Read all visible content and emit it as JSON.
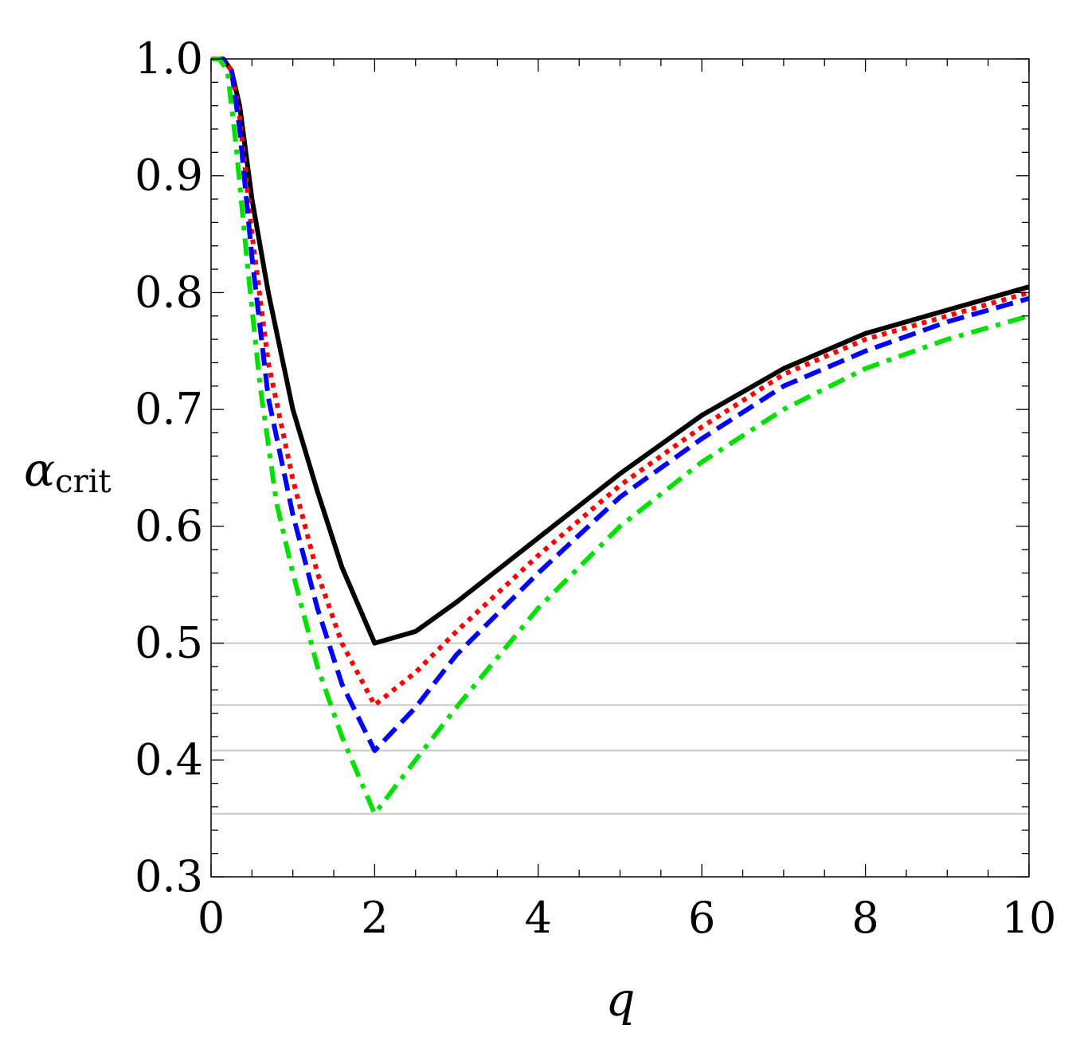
{
  "chart_data": {
    "type": "line",
    "xlabel": "q",
    "ylabel": {
      "main": "α",
      "sub": "crit"
    },
    "xlim": [
      0,
      10
    ],
    "ylim": [
      0.3,
      1.0
    ],
    "x_ticks": [
      0,
      2,
      4,
      6,
      8,
      10
    ],
    "x_tick_labels": [
      "0",
      "2",
      "4",
      "6",
      "8",
      "10"
    ],
    "y_ticks": [
      0.3,
      0.4,
      0.5,
      0.6,
      0.7,
      0.8,
      0.9,
      1.0
    ],
    "y_tick_labels": [
      "0.3",
      "0.4",
      "0.5",
      "0.6",
      "0.7",
      "0.8",
      "0.9",
      "1.0"
    ],
    "grid": false,
    "reference_lines": [
      0.5,
      0.447,
      0.408,
      0.354
    ],
    "reference_line_color": "#c8c8c8",
    "series": [
      {
        "color": "#000000",
        "dash": "solid",
        "points": [
          [
            0,
            1.0
          ],
          [
            0.15,
            1.0
          ],
          [
            0.25,
            0.99
          ],
          [
            0.35,
            0.96
          ],
          [
            0.5,
            0.88
          ],
          [
            0.7,
            0.8
          ],
          [
            1.0,
            0.7
          ],
          [
            1.3,
            0.63
          ],
          [
            1.6,
            0.565
          ],
          [
            2.0,
            0.5
          ],
          [
            2.5,
            0.51
          ],
          [
            3.0,
            0.535
          ],
          [
            4.0,
            0.59
          ],
          [
            5.0,
            0.645
          ],
          [
            6.0,
            0.695
          ],
          [
            7.0,
            0.735
          ],
          [
            8.0,
            0.765
          ],
          [
            9.0,
            0.785
          ],
          [
            10.0,
            0.805
          ]
        ]
      },
      {
        "color": "#ff0000",
        "dash": "dotted",
        "points": [
          [
            0,
            1.0
          ],
          [
            0.15,
            1.0
          ],
          [
            0.25,
            0.99
          ],
          [
            0.35,
            0.95
          ],
          [
            0.5,
            0.85
          ],
          [
            0.7,
            0.74
          ],
          [
            1.0,
            0.64
          ],
          [
            1.3,
            0.56
          ],
          [
            1.6,
            0.5
          ],
          [
            2.0,
            0.447
          ],
          [
            2.5,
            0.475
          ],
          [
            3.0,
            0.51
          ],
          [
            4.0,
            0.575
          ],
          [
            5.0,
            0.635
          ],
          [
            6.0,
            0.685
          ],
          [
            7.0,
            0.73
          ],
          [
            8.0,
            0.76
          ],
          [
            9.0,
            0.78
          ],
          [
            10.0,
            0.8
          ]
        ]
      },
      {
        "color": "#0000ff",
        "dash": "dashed",
        "points": [
          [
            0,
            1.0
          ],
          [
            0.15,
            1.0
          ],
          [
            0.25,
            0.99
          ],
          [
            0.35,
            0.94
          ],
          [
            0.5,
            0.83
          ],
          [
            0.7,
            0.71
          ],
          [
            1.0,
            0.61
          ],
          [
            1.3,
            0.53
          ],
          [
            1.6,
            0.465
          ],
          [
            2.0,
            0.408
          ],
          [
            2.5,
            0.445
          ],
          [
            3.0,
            0.49
          ],
          [
            4.0,
            0.56
          ],
          [
            5.0,
            0.625
          ],
          [
            6.0,
            0.675
          ],
          [
            7.0,
            0.72
          ],
          [
            8.0,
            0.75
          ],
          [
            9.0,
            0.775
          ],
          [
            10.0,
            0.795
          ]
        ]
      },
      {
        "color": "#00e000",
        "dash": "dashdot",
        "points": [
          [
            0,
            1.0
          ],
          [
            0.1,
            1.0
          ],
          [
            0.2,
            0.99
          ],
          [
            0.3,
            0.93
          ],
          [
            0.45,
            0.82
          ],
          [
            0.6,
            0.72
          ],
          [
            0.8,
            0.62
          ],
          [
            1.0,
            0.56
          ],
          [
            1.3,
            0.48
          ],
          [
            1.6,
            0.42
          ],
          [
            2.0,
            0.354
          ],
          [
            2.5,
            0.4
          ],
          [
            3.0,
            0.445
          ],
          [
            4.0,
            0.53
          ],
          [
            5.0,
            0.6
          ],
          [
            6.0,
            0.655
          ],
          [
            7.0,
            0.7
          ],
          [
            8.0,
            0.735
          ],
          [
            9.0,
            0.76
          ],
          [
            10.0,
            0.78
          ]
        ]
      }
    ]
  }
}
